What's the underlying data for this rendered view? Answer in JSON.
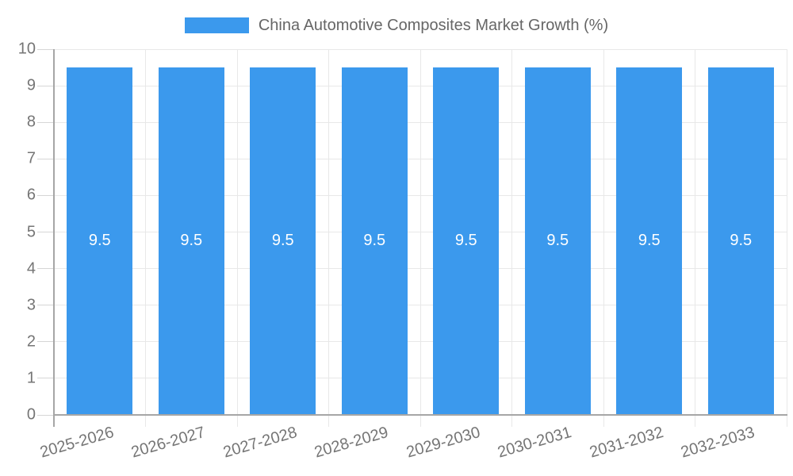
{
  "chart_data": {
    "type": "bar",
    "title": "China Automotive Composites Market Growth (%)",
    "legend": [
      "China Automotive Composites Market Growth (%)"
    ],
    "legend_position": "top",
    "categories": [
      "2025-2026",
      "2026-2027",
      "2027-2028",
      "2028-2029",
      "2029-2030",
      "2030-2031",
      "2031-2032",
      "2032-2033"
    ],
    "values": [
      9.5,
      9.5,
      9.5,
      9.5,
      9.5,
      9.5,
      9.5,
      9.5
    ],
    "bar_labels": [
      "9.5",
      "9.5",
      "9.5",
      "9.5",
      "9.5",
      "9.5",
      "9.5",
      "9.5"
    ],
    "xlabel": "",
    "ylabel": "",
    "ylim": [
      0,
      10
    ],
    "yticks": [
      "0",
      "1",
      "2",
      "3",
      "4",
      "5",
      "6",
      "7",
      "8",
      "9",
      "10"
    ],
    "grid": true
  },
  "colors": {
    "bar": "#3B99ED",
    "grid_line": "#E8E8E8",
    "axis_line": "#A6A6A6",
    "tick_line": "#D6D6D6",
    "tick_label": "#757575",
    "legend_text": "#666666",
    "bar_label": "#FFFFFF",
    "background": "#FFFFFF"
  }
}
